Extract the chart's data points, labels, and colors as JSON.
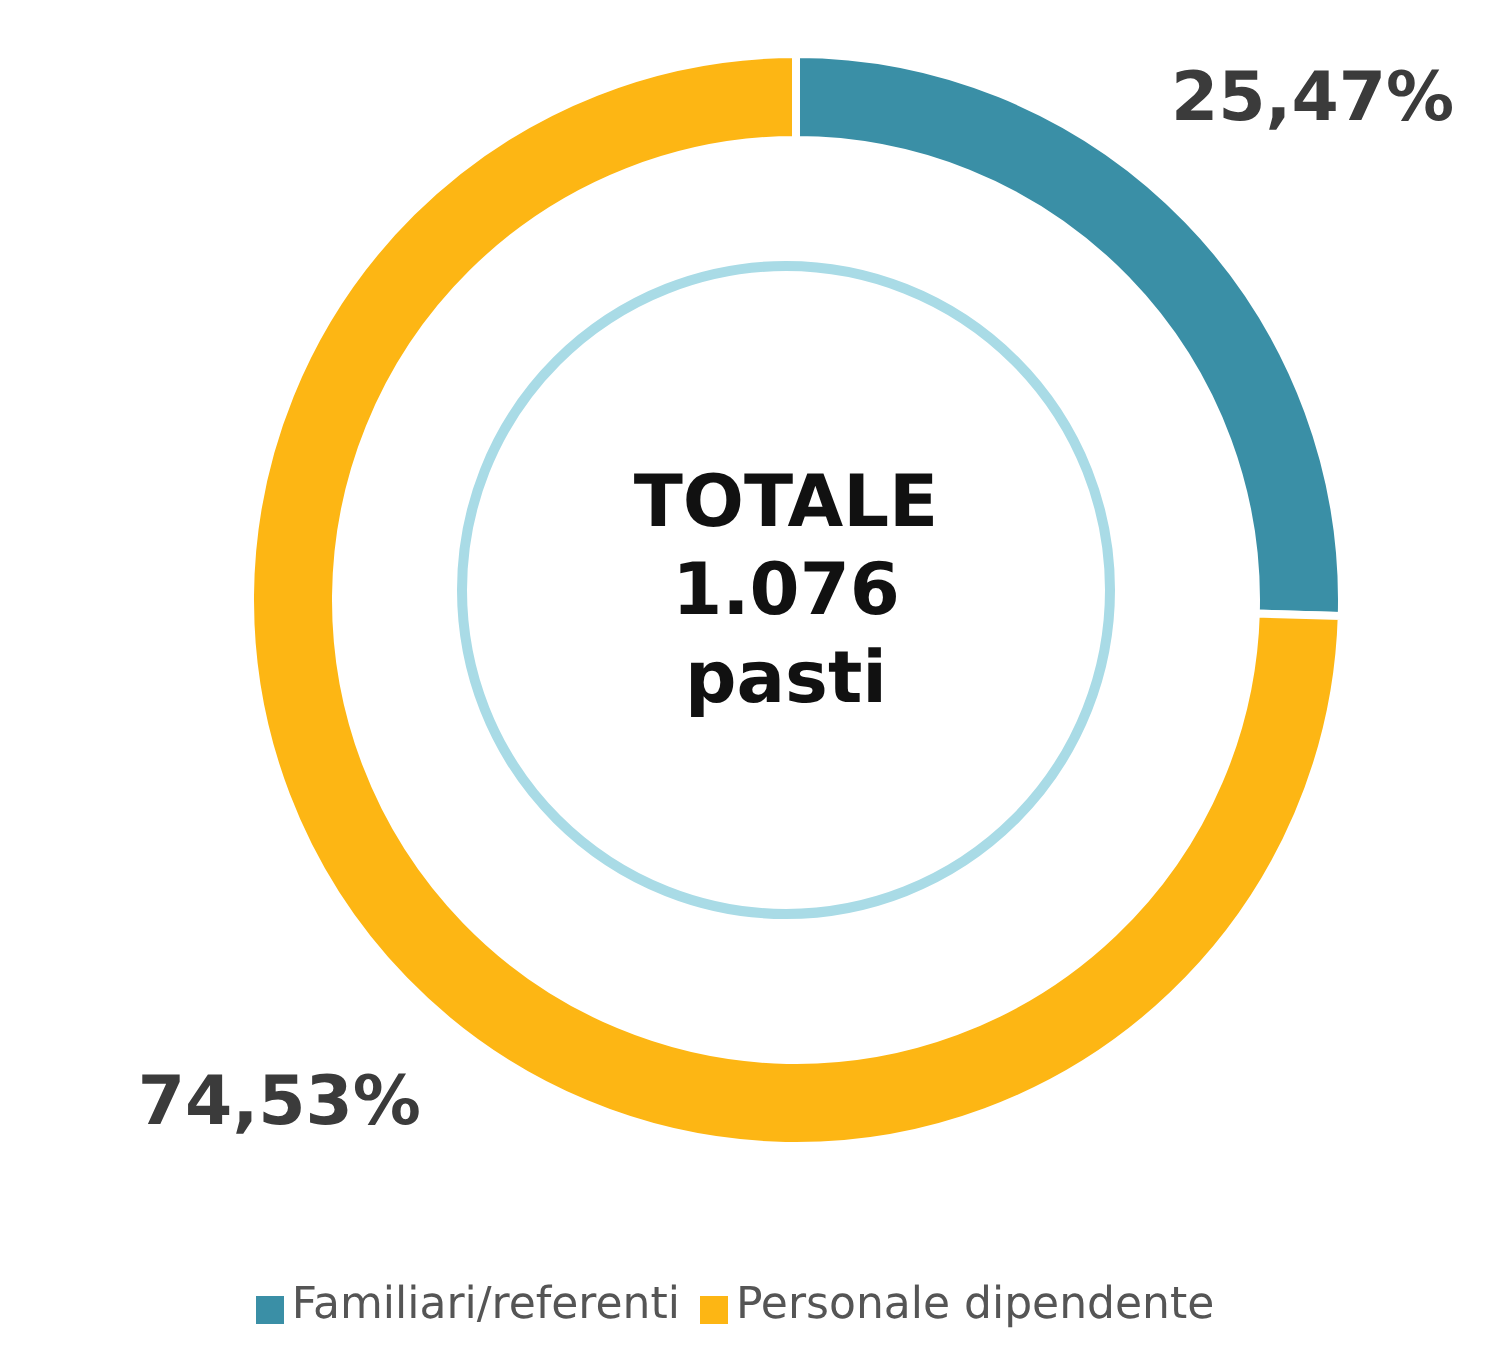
{
  "chart_data": {
    "type": "donut",
    "categories": [
      "Familiari/referenti",
      "Personale dipendente"
    ],
    "values": [
      25.47,
      74.53
    ],
    "colors": [
      "#3a8fa6",
      "#fdb614"
    ],
    "value_labels": [
      "25,47%",
      "74,53%"
    ],
    "annotations": [
      "TOTALE\n1.076\npasti"
    ],
    "legend": "bottom"
  }
}
